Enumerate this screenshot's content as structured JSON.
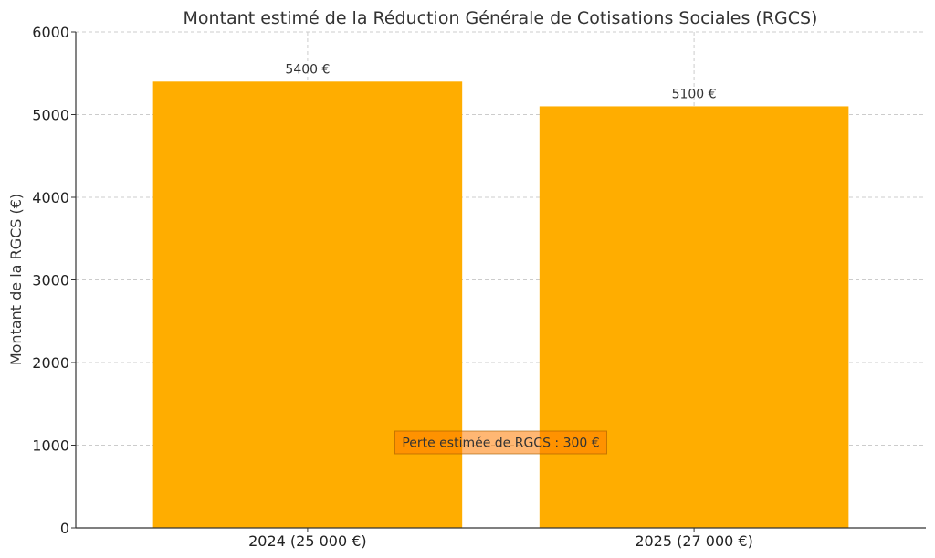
{
  "chart_data": {
    "type": "bar",
    "title": "Montant estimé de la Réduction Générale de Cotisations Sociales (RGCS)",
    "xlabel": "",
    "ylabel": "Montant de la RGCS (€)",
    "categories": [
      "2024 (25 000 €)",
      "2025 (27 000 €)"
    ],
    "values": [
      5400,
      5100
    ],
    "value_labels": [
      "5400 €",
      "5100 €"
    ],
    "ylim": [
      0,
      6000
    ],
    "yticks": [
      0,
      1000,
      2000,
      3000,
      4000,
      5000,
      6000
    ],
    "ytick_labels": [
      "0",
      "1000",
      "2000",
      "3000",
      "4000",
      "5000",
      "6000"
    ],
    "grid": true,
    "bar_color": "#ffad00",
    "annotation": {
      "text": "Perte estimée de RGCS : 300 €",
      "y": 1000,
      "color": "#ff7b00"
    }
  }
}
